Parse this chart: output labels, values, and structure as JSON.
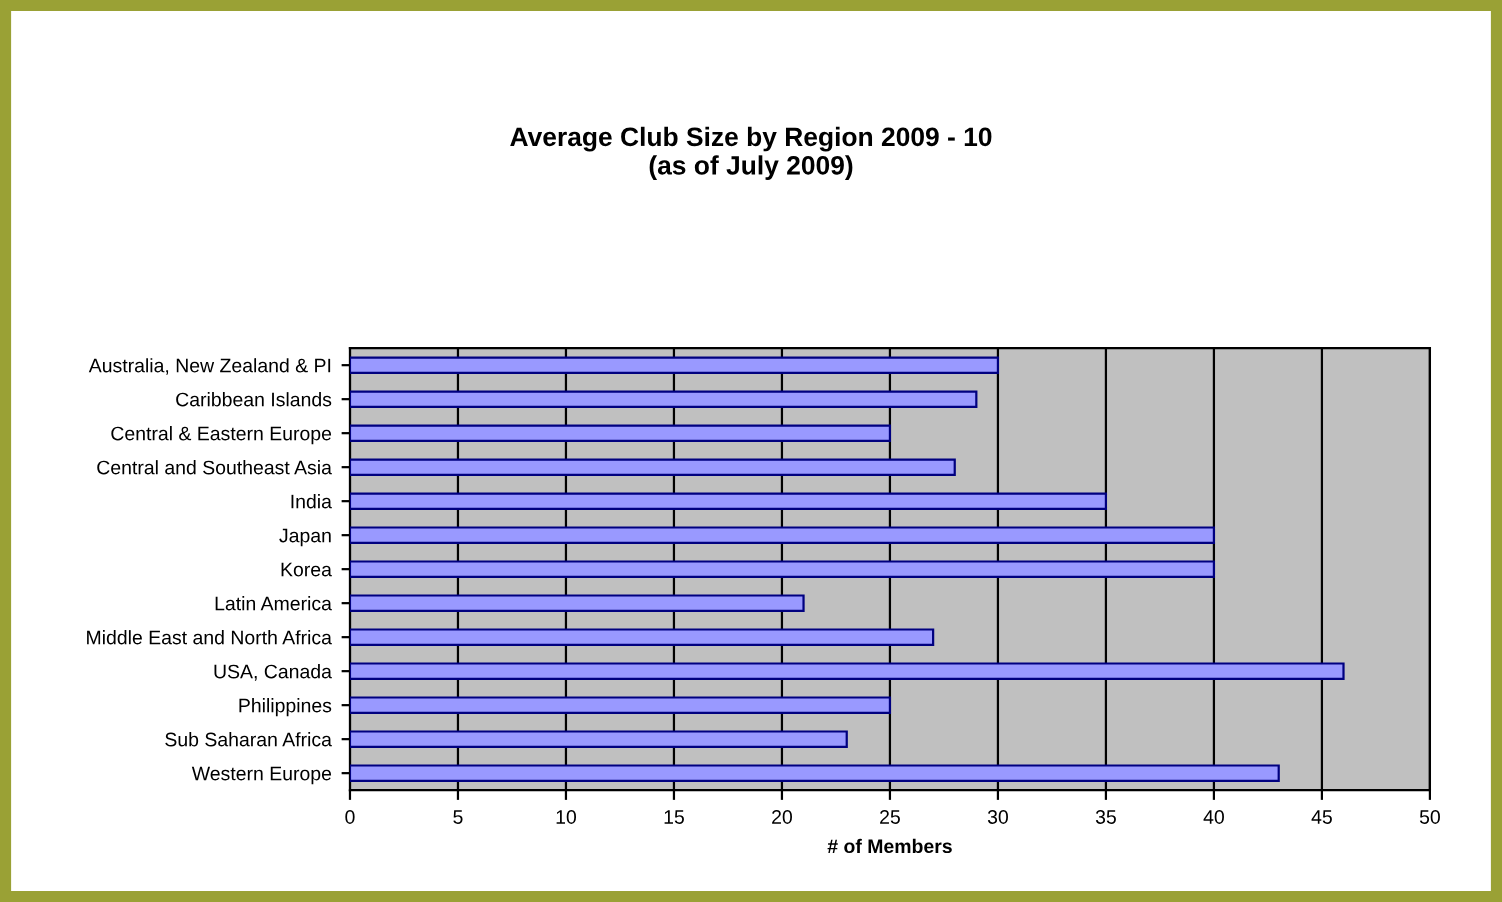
{
  "chart_data": {
    "type": "bar",
    "orientation": "horizontal",
    "title": "Average Club Size by Region 2009 - 10\n(as of July 2009)",
    "xlabel": "# of Members",
    "categories": [
      "Australia, New Zealand & PI",
      "Caribbean Islands",
      "Central & Eastern Europe",
      "Central and Southeast Asia",
      "India",
      "Japan",
      "Korea",
      "Latin America",
      "Middle East and North Africa",
      "USA, Canada",
      "Philippines",
      "Sub Saharan Africa",
      "Western Europe"
    ],
    "values": [
      30,
      29,
      25,
      28,
      35,
      40,
      40,
      21,
      27,
      46,
      25,
      23,
      43
    ],
    "color": "#9999ff",
    "xlim": [
      0,
      50
    ],
    "xticks": [
      0,
      5,
      10,
      15,
      20,
      25,
      30,
      35,
      40,
      45,
      50
    ],
    "grid": "x",
    "legend": false
  }
}
